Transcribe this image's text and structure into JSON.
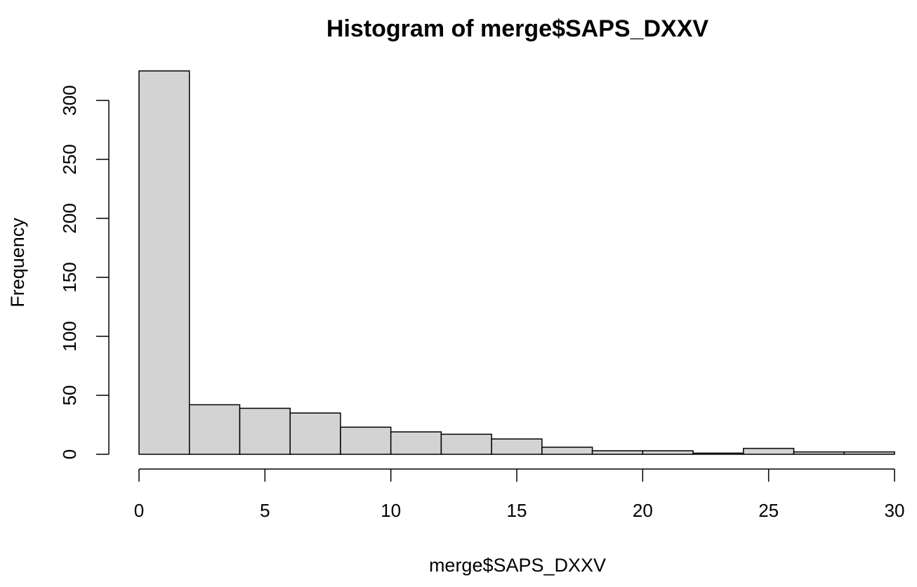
{
  "chart_data": {
    "type": "bar",
    "title": "Histogram of merge$SAPS_DXXV",
    "xlabel": "merge$SAPS_DXXV",
    "ylabel": "Frequency",
    "bin_edges": [
      0,
      2,
      4,
      6,
      8,
      10,
      12,
      14,
      16,
      18,
      20,
      22,
      24,
      26,
      28,
      30
    ],
    "values": [
      325,
      42,
      39,
      35,
      23,
      19,
      17,
      13,
      6,
      3,
      3,
      1,
      5,
      2,
      2
    ],
    "xlim": [
      0,
      30
    ],
    "ylim": [
      0,
      325
    ],
    "x_ticks": [
      0,
      5,
      10,
      15,
      20,
      25,
      30
    ],
    "y_ticks": [
      0,
      50,
      100,
      150,
      200,
      250,
      300
    ],
    "x_tick_labels": [
      "0",
      "5",
      "10",
      "15",
      "20",
      "25",
      "30"
    ],
    "y_tick_labels": [
      "0",
      "50",
      "100",
      "150",
      "200",
      "250",
      "300"
    ],
    "bar_fill": "#d3d3d3",
    "bar_stroke": "#000000",
    "grid": false
  }
}
